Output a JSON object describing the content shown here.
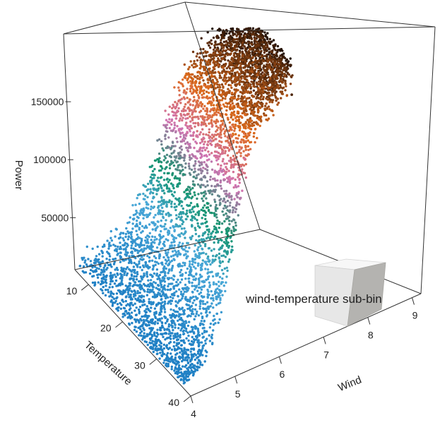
{
  "chart_data": {
    "type": "scatter",
    "projection": "3d",
    "title": "",
    "zlabel": "Power",
    "xlabel": "Temperature",
    "ylabel": "Wind",
    "z_ticks": [
      50000,
      100000,
      150000
    ],
    "x_ticks": [
      10,
      20,
      30,
      40
    ],
    "y_ticks": [
      4,
      5,
      6,
      7,
      8,
      9
    ],
    "xlim": [
      6,
      40
    ],
    "ylim": [
      4,
      9.2
    ],
    "zlim": [
      10000,
      200000
    ],
    "grid": false,
    "legend": "none",
    "color_by": "Power",
    "colors": {
      "low": "#1f7fc4",
      "low_mid": "#4aa8d8",
      "mid": "#13946e",
      "mid_high": "#d174b4",
      "high": "#de6b1c",
      "top": "#1a0d05"
    },
    "points": [
      {
        "x": 8,
        "y": 4.0,
        "z": 15000
      },
      {
        "x": 12,
        "y": 4.3,
        "z": 22000
      },
      {
        "x": 15,
        "y": 4.6,
        "z": 30000
      },
      {
        "x": 20,
        "y": 4.8,
        "z": 28000
      },
      {
        "x": 28,
        "y": 5.0,
        "z": 26000
      },
      {
        "x": 35,
        "y": 4.6,
        "z": 16000
      },
      {
        "x": 10,
        "y": 5.4,
        "z": 48000
      },
      {
        "x": 18,
        "y": 5.6,
        "z": 55000
      },
      {
        "x": 25,
        "y": 5.8,
        "z": 60000
      },
      {
        "x": 12,
        "y": 6.3,
        "z": 85000
      },
      {
        "x": 20,
        "y": 6.5,
        "z": 95000
      },
      {
        "x": 28,
        "y": 6.4,
        "z": 82000
      },
      {
        "x": 14,
        "y": 7.2,
        "z": 125000
      },
      {
        "x": 22,
        "y": 7.4,
        "z": 135000
      },
      {
        "x": 10,
        "y": 8.0,
        "z": 170000
      },
      {
        "x": 18,
        "y": 8.3,
        "z": 185000
      },
      {
        "x": 24,
        "y": 8.6,
        "z": 190000
      },
      {
        "x": 12,
        "y": 8.9,
        "z": 195000
      }
    ],
    "annotation": {
      "text": "wind-temperature sub-bin",
      "icon": "sub-bin-cube-icon"
    }
  }
}
